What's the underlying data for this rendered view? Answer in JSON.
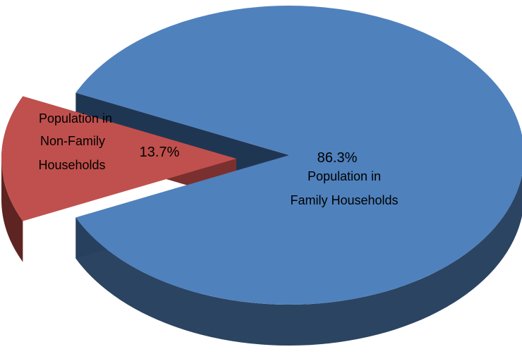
{
  "chart_data": {
    "type": "pie",
    "style": "3d-exploded",
    "slices": [
      {
        "label_lines": [
          "Population in",
          "Family Households"
        ],
        "value": 86.3,
        "value_label": "86.3%",
        "color": "#4F81BD",
        "side_color": "#2B4462",
        "exploded": false
      },
      {
        "label_lines": [
          "Population in",
          "Non-Family",
          "Households"
        ],
        "value": 13.7,
        "value_label": "13.7%",
        "color": "#C0504D",
        "side_color": "#6E2B29",
        "exploded": true
      }
    ],
    "legend": "none",
    "title": ""
  }
}
